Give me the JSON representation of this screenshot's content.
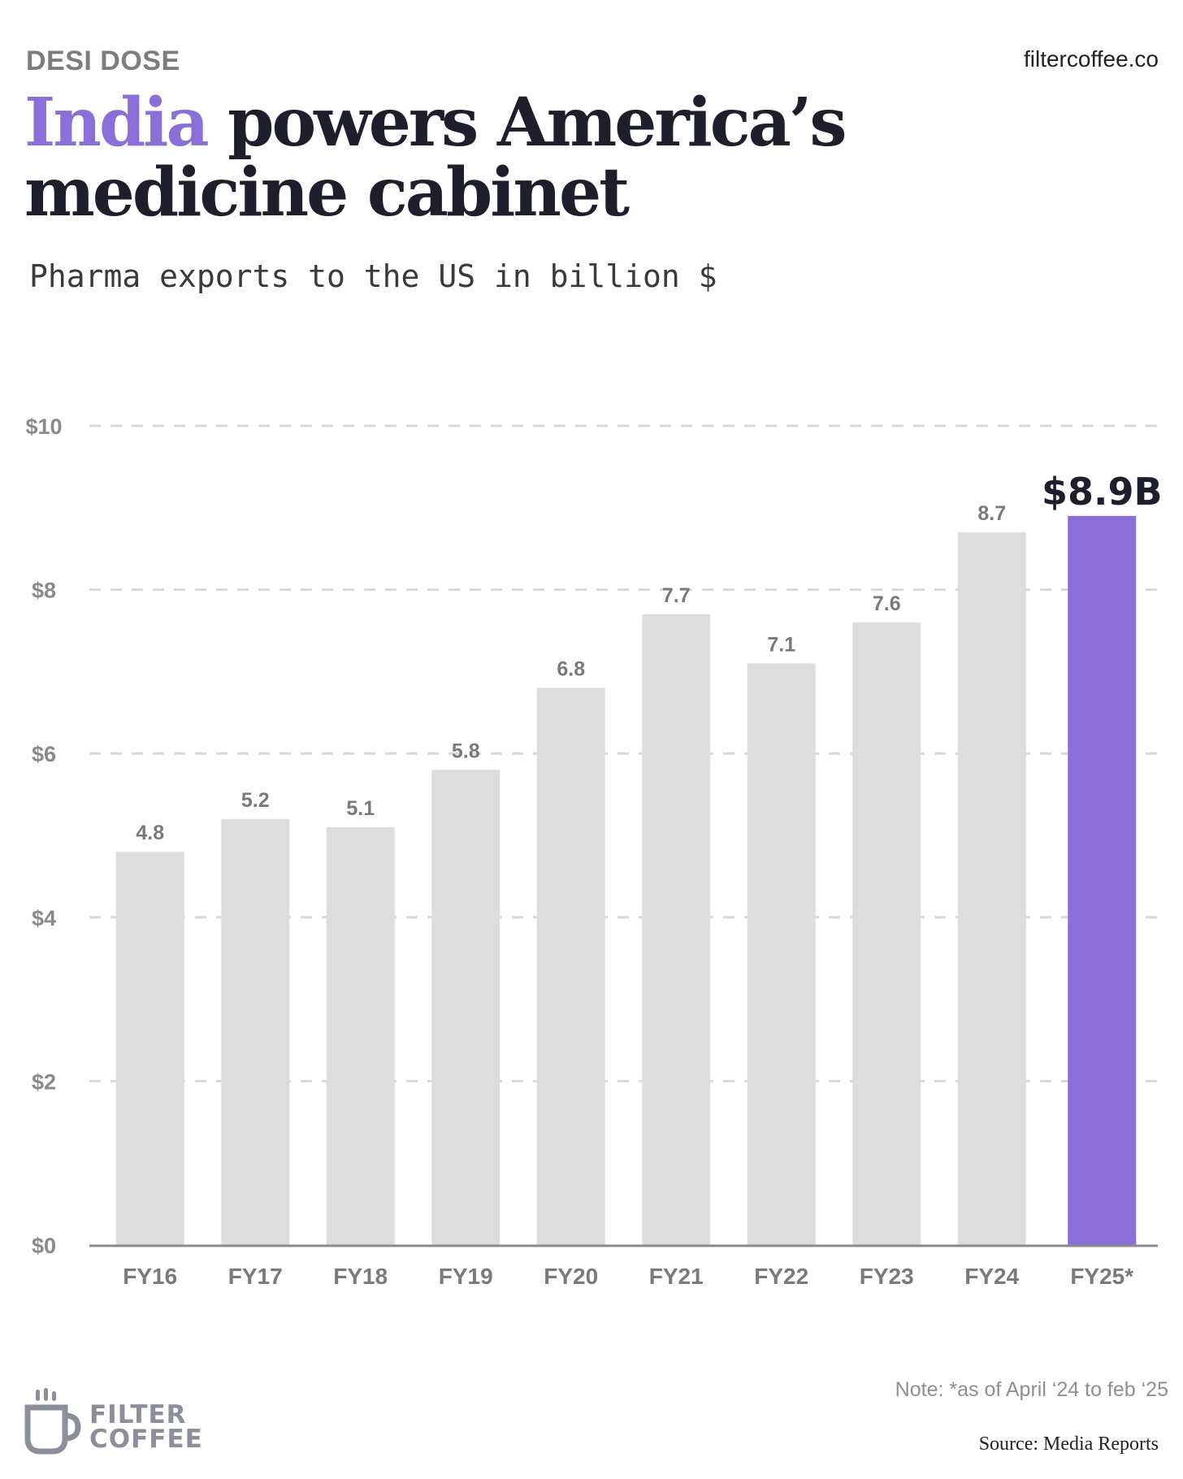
{
  "header": {
    "kicker": "DESI DOSE",
    "site": "filtercoffee.co",
    "title_highlight": "India",
    "title_rest": " powers America’s medicine cabinet",
    "subtitle": "Pharma exports to the US in billion $"
  },
  "chart_data": {
    "type": "bar",
    "categories": [
      "FY16",
      "FY17",
      "FY18",
      "FY19",
      "FY20",
      "FY21",
      "FY22",
      "FY23",
      "FY24",
      "FY25*"
    ],
    "values": [
      4.8,
      5.2,
      5.1,
      5.8,
      6.8,
      7.7,
      7.1,
      7.6,
      8.7,
      8.9
    ],
    "value_labels": [
      "4.8",
      "5.2",
      "5.1",
      "5.8",
      "6.8",
      "7.7",
      "7.1",
      "7.6",
      "8.7",
      "$8.9B"
    ],
    "yticks": [
      0,
      2,
      4,
      6,
      8,
      10
    ],
    "ytick_labels": [
      "$0",
      "$2",
      "$4",
      "$6",
      "$8",
      "$10"
    ],
    "ylim": [
      0,
      10
    ],
    "grid": true,
    "highlight_index": 9,
    "colors": {
      "bar": "#dddddd",
      "highlight": "#8b6fd9",
      "grid": "#d9d9d9",
      "axis": "#8a8a8a"
    }
  },
  "footer": {
    "note": "Note: *as of April ‘24 to feb ‘25",
    "source": "Source: Media Reports",
    "logo_line1": "FILTER",
    "logo_line2": "COFFEE",
    "logo_icon": "coffee-cup-icon"
  }
}
